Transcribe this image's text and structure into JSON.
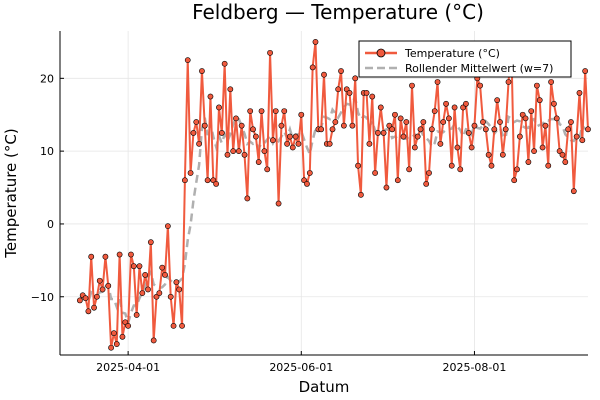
{
  "chart_data": {
    "type": "line",
    "title": "Feldberg — Temperature (°C)",
    "xlabel": "Datum",
    "ylabel": "Temperature (°C)",
    "x_start": "2025-03-15",
    "x_tick_labels": [
      "2025-04-01",
      "2025-06-01",
      "2025-08-01"
    ],
    "x_tick_dates": [
      "2025-04-01",
      "2025-06-01",
      "2025-08-01"
    ],
    "xlim": [
      "2025-03-08",
      "2025-09-10"
    ],
    "y_ticks": [
      -10,
      0,
      10,
      20
    ],
    "y_tick_labels": [
      "−10",
      "0",
      "10",
      "20"
    ],
    "ylim": [
      -18,
      26.5
    ],
    "grid": true,
    "legend_position": "top-right",
    "series": [
      {
        "name": "Temperature (°C)",
        "color": "#f05a3e",
        "marker": "circle",
        "values": [
          -10.5,
          -9.8,
          -10.2,
          -12.0,
          -4.5,
          -11.5,
          -10.0,
          -7.8,
          -9.0,
          -4.5,
          -8.5,
          -17.0,
          -15.0,
          -16.5,
          -4.2,
          -15.5,
          -13.5,
          -14.0,
          -4.2,
          -5.8,
          -12.5,
          -5.8,
          -9.5,
          -7.0,
          -9.0,
          -2.5,
          -16.0,
          -10.0,
          -9.5,
          -6.0,
          -7.0,
          -0.3,
          -10.0,
          -14.0,
          -8.0,
          -9.0,
          -14.0,
          6.0,
          22.5,
          7.0,
          12.5,
          14.0,
          11.0,
          21.0,
          13.5,
          6.0,
          17.5,
          6.0,
          5.5,
          16.0,
          12.5,
          22.0,
          9.5,
          18.5,
          10.0,
          14.5,
          10.0,
          13.5,
          9.5,
          3.5,
          15.5,
          13.0,
          12.0,
          8.5,
          15.5,
          10.0,
          7.5,
          23.5,
          11.5,
          15.5,
          2.8,
          13.5,
          15.5,
          11.0,
          12.0,
          10.5,
          12.0,
          11.0,
          15.0,
          6.0,
          5.5,
          7.0,
          21.5,
          25.0,
          13.0,
          13.0,
          20.5,
          11.0,
          11.0,
          13.0,
          14.0,
          18.5,
          21.0,
          13.5,
          18.5,
          18.0,
          13.5,
          20.0,
          8.0,
          4.0,
          18.0,
          18.0,
          11.0,
          17.5,
          7.0,
          12.5,
          16.0,
          12.5,
          5.0,
          13.5,
          13.0,
          15.0,
          6.0,
          14.5,
          12.0,
          14.0,
          7.5,
          19.0,
          10.5,
          12.0,
          13.0,
          14.0,
          5.5,
          7.0,
          13.0,
          15.5,
          19.5,
          11.0,
          14.0,
          16.5,
          14.5,
          8.0,
          16.0,
          10.5,
          7.5,
          16.0,
          16.5,
          12.5,
          10.5,
          13.5,
          20.0,
          19.0,
          14.0,
          13.0,
          9.5,
          8.0,
          13.0,
          17.0,
          14.0,
          9.5,
          13.0,
          19.5,
          24.5,
          6.0,
          7.5,
          12.0,
          15.0,
          14.5,
          8.5,
          15.5,
          10.0,
          19.0,
          17.0,
          10.5,
          13.5,
          8.0,
          19.5,
          16.5,
          14.5,
          10.0,
          9.5,
          8.5,
          13.0,
          14.0,
          4.5,
          12.0,
          18.0,
          11.5,
          21.0,
          13.0
        ]
      },
      {
        "name": "Rollender Mittelwert (w=7)",
        "color": "#b0b0b0",
        "dash": "dashed",
        "values": [
          -10.5,
          -10.2,
          -10.1,
          -10.6,
          -9.4,
          -9.7,
          -9.8,
          -9.4,
          -9.3,
          -8.6,
          -8.3,
          -10.3,
          -10.3,
          -11.4,
          -10.3,
          -12.2,
          -12.3,
          -13.6,
          -12.2,
          -11.2,
          -11.2,
          -10.2,
          -9.4,
          -8.6,
          -7.3,
          -6.6,
          -8.3,
          -8.6,
          -8.8,
          -8.7,
          -8.3,
          -7.3,
          -7.8,
          -8.1,
          -7.9,
          -7.9,
          -7.5,
          -5.5,
          -2.2,
          -0.1,
          3.2,
          5.7,
          8.1,
          13.1,
          14.6,
          12.2,
          13.8,
          12.0,
          10.6,
          12.1,
          11.1,
          12.3,
          11.4,
          12.3,
          13.7,
          14.5,
          14.4,
          13.4,
          12.4,
          11.0,
          11.3,
          11.0,
          11.2,
          10.4,
          11.1,
          11.1,
          11.6,
          12.0,
          11.1,
          11.9,
          11.4,
          12.0,
          12.7,
          11.8,
          13.0,
          11.7,
          12.3,
          12.3,
          12.7,
          11.6,
          10.5,
          9.6,
          11.5,
          13.0,
          12.8,
          13.3,
          14.7,
          14.6,
          14.4,
          15.7,
          15.2,
          14.6,
          15.3,
          16.0,
          16.5,
          16.4,
          16.9,
          17.3,
          15.3,
          14.4,
          14.8,
          14.6,
          13.4,
          14.1,
          12.8,
          12.7,
          12.7,
          12.8,
          13.0,
          12.9,
          11.8,
          12.0,
          11.7,
          11.9,
          11.7,
          11.7,
          12.0,
          11.9,
          12.3,
          12.0,
          13.0,
          12.1,
          11.8,
          11.4,
          10.6,
          11.1,
          12.7,
          12.6,
          12.6,
          13.0,
          13.0,
          13.1,
          13.7,
          13.4,
          12.9,
          12.0,
          13.0,
          12.9,
          12.3,
          13.7,
          13.2,
          13.1,
          13.5,
          14.1,
          13.7,
          13.2,
          12.4,
          12.9,
          13.2,
          12.2,
          11.8,
          14.7,
          14.5,
          14.0,
          14.2,
          14.1,
          13.4,
          13.2,
          13.2,
          14.3,
          14.4,
          13.4,
          13.6,
          13.7,
          14.3,
          14.2,
          14.4,
          14.4,
          14.8,
          13.7,
          13.5,
          12.3,
          11.9,
          11.5,
          11.4,
          12.1,
          11.8,
          13.5,
          13.0
        ]
      }
    ]
  }
}
